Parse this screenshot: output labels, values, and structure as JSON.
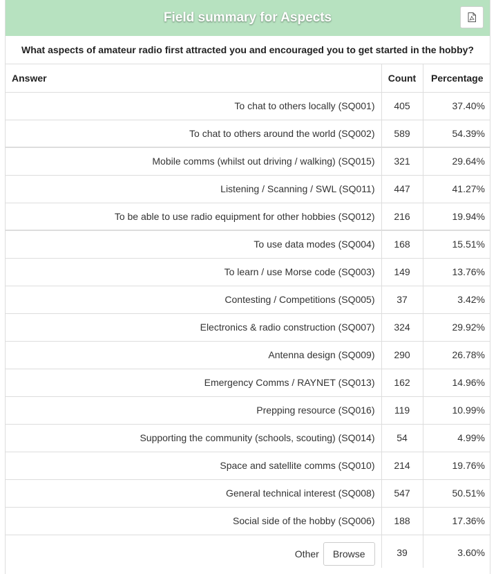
{
  "header": {
    "title": "Field summary for Aspects",
    "pdf_icon": "file-pdf-icon"
  },
  "question": "What aspects of amateur radio first attracted you and encouraged you to get started in the hobby?",
  "columns": {
    "answer": "Answer",
    "count": "Count",
    "percentage": "Percentage"
  },
  "rows": [
    {
      "answer": "To chat to others locally (SQ001)",
      "count": "405",
      "percentage": "37.40%"
    },
    {
      "answer": "To chat to others around the world (SQ002)",
      "count": "589",
      "percentage": "54.39%"
    },
    {
      "answer": "Mobile comms (whilst out driving / walking) (SQ015)",
      "count": "321",
      "percentage": "29.64%"
    },
    {
      "answer": "Listening / Scanning / SWL (SQ011)",
      "count": "447",
      "percentage": "41.27%"
    },
    {
      "answer": "To be able to use radio equipment for other hobbies (SQ012)",
      "count": "216",
      "percentage": "19.94%"
    },
    {
      "answer": "To use data modes (SQ004)",
      "count": "168",
      "percentage": "15.51%"
    },
    {
      "answer": "To learn / use Morse code (SQ003)",
      "count": "149",
      "percentage": "13.76%"
    },
    {
      "answer": "Contesting / Competitions (SQ005)",
      "count": "37",
      "percentage": "3.42%"
    },
    {
      "answer": "Electronics & radio construction (SQ007)",
      "count": "324",
      "percentage": "29.92%"
    },
    {
      "answer": "Antenna design (SQ009)",
      "count": "290",
      "percentage": "26.78%"
    },
    {
      "answer": "Emergency Comms / RAYNET (SQ013)",
      "count": "162",
      "percentage": "14.96%"
    },
    {
      "answer": "Prepping resource (SQ016)",
      "count": "119",
      "percentage": "10.99%"
    },
    {
      "answer": "Supporting the community (schools, scouting) (SQ014)",
      "count": "54",
      "percentage": "4.99%"
    },
    {
      "answer": "Space and satellite comms (SQ010)",
      "count": "214",
      "percentage": "19.76%"
    },
    {
      "answer": "General technical interest (SQ008)",
      "count": "547",
      "percentage": "50.51%"
    },
    {
      "answer": "Social side of the hobby (SQ006)",
      "count": "188",
      "percentage": "17.36%"
    }
  ],
  "other_row": {
    "answer": "Other",
    "browse_label": "Browse",
    "count": "39",
    "percentage": "3.60%"
  },
  "colors": {
    "header_bg": "#b7e2c0",
    "header_text": "#ffffff",
    "border": "#dddddd"
  }
}
